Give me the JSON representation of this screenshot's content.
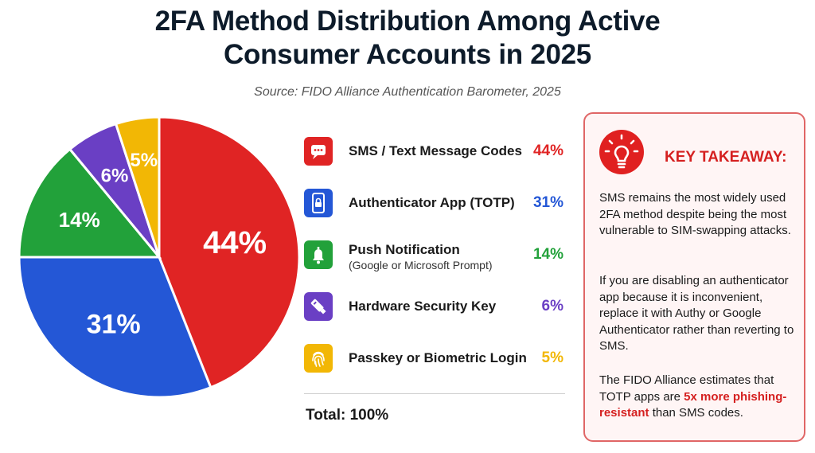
{
  "chart_data": {
    "type": "pie",
    "title_line1": "2FA Method Distribution Among Active",
    "title_line2": "Consumer Accounts in 2025",
    "subtitle": "Source: FIDO Alliance Authentication Barometer, 2025",
    "slices": [
      {
        "label": "SMS / Text Message Codes",
        "sublabel": "",
        "value": 44,
        "display": "44%",
        "color": "#e02424",
        "icon": "message-icon"
      },
      {
        "label": "Authenticator App (TOTP)",
        "sublabel": "",
        "value": 31,
        "display": "31%",
        "color": "#2457d6",
        "icon": "phone-lock-icon"
      },
      {
        "label": "Push Notification",
        "sublabel": "(Google or Microsoft Prompt)",
        "value": 14,
        "display": "14%",
        "color": "#22a13a",
        "icon": "bell-icon"
      },
      {
        "label": "Hardware Security Key",
        "sublabel": "",
        "value": 6,
        "display": "6%",
        "color": "#6a3fc4",
        "icon": "usb-key-icon"
      },
      {
        "label": "Passkey or Biometric Login",
        "sublabel": "",
        "value": 5,
        "display": "5%",
        "color": "#f2b705",
        "icon": "fingerprint-icon"
      }
    ],
    "total_label": "Total: 100%"
  },
  "takeaway": {
    "heading": "KEY TAKEAWAY:",
    "icon": "lightbulb-icon",
    "p1": "SMS remains the most widely used 2FA method despite being the most vulnerable to SIM-swapping attacks.",
    "p2": "If you are disabling an authenticator app because it is inconvenient, replace it with Authy or Google Authenticator rather than reverting to SMS.",
    "p3_before": "The FIDO Alliance estimates that TOTP apps are ",
    "p3_highlight": "5x more phishing-resistant",
    "p3_after": " than SMS codes.",
    "accent": "#d52020"
  }
}
